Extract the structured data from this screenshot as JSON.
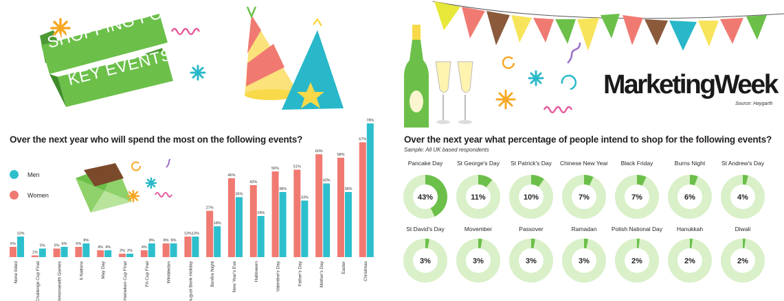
{
  "banner": {
    "line1": "SHOPPING FOR",
    "line2": "KEY EVENTS"
  },
  "logo": {
    "text": "MarketingWeek",
    "source": "Source: Haygarth"
  },
  "colors": {
    "men": "#2ebfcd",
    "women": "#f07a72",
    "donut_bg": "#d9f0c8",
    "donut_fill": "#6cc04a",
    "banner": "#6cc04a"
  },
  "chart_data": [
    {
      "type": "bar",
      "title": "Over the next year who will spend the most on the following events?",
      "legend": [
        {
          "name": "Men",
          "color": "#2ebfcd"
        },
        {
          "name": "Women",
          "color": "#f07a72"
        }
      ],
      "categories": [
        "None listed",
        "Challenge Cup Final",
        "Commonwealth Games",
        "6 Nations",
        "May Day",
        "Heineken Cup Final",
        "FA Cup Final",
        "Wimbledon",
        "August Bank Holiday",
        "Bonfire Night",
        "New Year's Eve",
        "Halloween",
        "Valentine's Day",
        "Father's Day",
        "Mother's Day",
        "Easter",
        "Christmas"
      ],
      "series": [
        {
          "name": "Women",
          "values": [
            6,
            1,
            5,
            6,
            4,
            2,
            4,
            8,
            12,
            27,
            46,
            42,
            50,
            51,
            60,
            58,
            67
          ],
          "labels": [
            "6%",
            "1%",
            "5%",
            "6%",
            "4%",
            "2%",
            "4%",
            "8%",
            "12%",
            "27%",
            "46%",
            "42%",
            "50%",
            "51%",
            "60%",
            "58%",
            "67%"
          ]
        },
        {
          "name": "Men",
          "values": [
            12,
            5,
            6,
            8,
            4,
            2,
            8,
            8,
            12,
            18,
            35,
            24,
            38,
            33,
            43,
            38,
            78
          ],
          "labels": [
            "12%",
            "5%",
            "6%",
            "8%",
            "4%",
            "2%",
            "8%",
            "8%",
            "12%",
            "18%",
            "35%",
            "24%",
            "38%",
            "33%",
            "43%",
            "38%",
            "78%"
          ]
        }
      ]
    },
    {
      "type": "pie",
      "title": "Over the next year what percentage of people intend to shop for the following events?",
      "subtitle": "Sample: All UK based respondents",
      "items": [
        {
          "label": "Pancake Day",
          "value": 43,
          "text": "43%"
        },
        {
          "label": "St George's Day",
          "value": 11,
          "text": "11%"
        },
        {
          "label": "St Patrick's Day",
          "value": 10,
          "text": "10%"
        },
        {
          "label": "Chinese New Year",
          "value": 7,
          "text": "7%"
        },
        {
          "label": "Black Friday",
          "value": 7,
          "text": "7%"
        },
        {
          "label": "Burns Night",
          "value": 6,
          "text": "6%"
        },
        {
          "label": "St Andrew's Day",
          "value": 4,
          "text": "4%"
        },
        {
          "label": "St David's Day",
          "value": 3,
          "text": "3%"
        },
        {
          "label": "Movember",
          "value": 3,
          "text": "3%"
        },
        {
          "label": "Passover",
          "value": 3,
          "text": "3%"
        },
        {
          "label": "Ramadan",
          "value": 3,
          "text": "3%"
        },
        {
          "label": "Polish National Day",
          "value": 2,
          "text": "2%"
        },
        {
          "label": "Hanukkah",
          "value": 2,
          "text": "2%"
        },
        {
          "label": "Diwali",
          "value": 2,
          "text": "2%"
        }
      ]
    }
  ]
}
